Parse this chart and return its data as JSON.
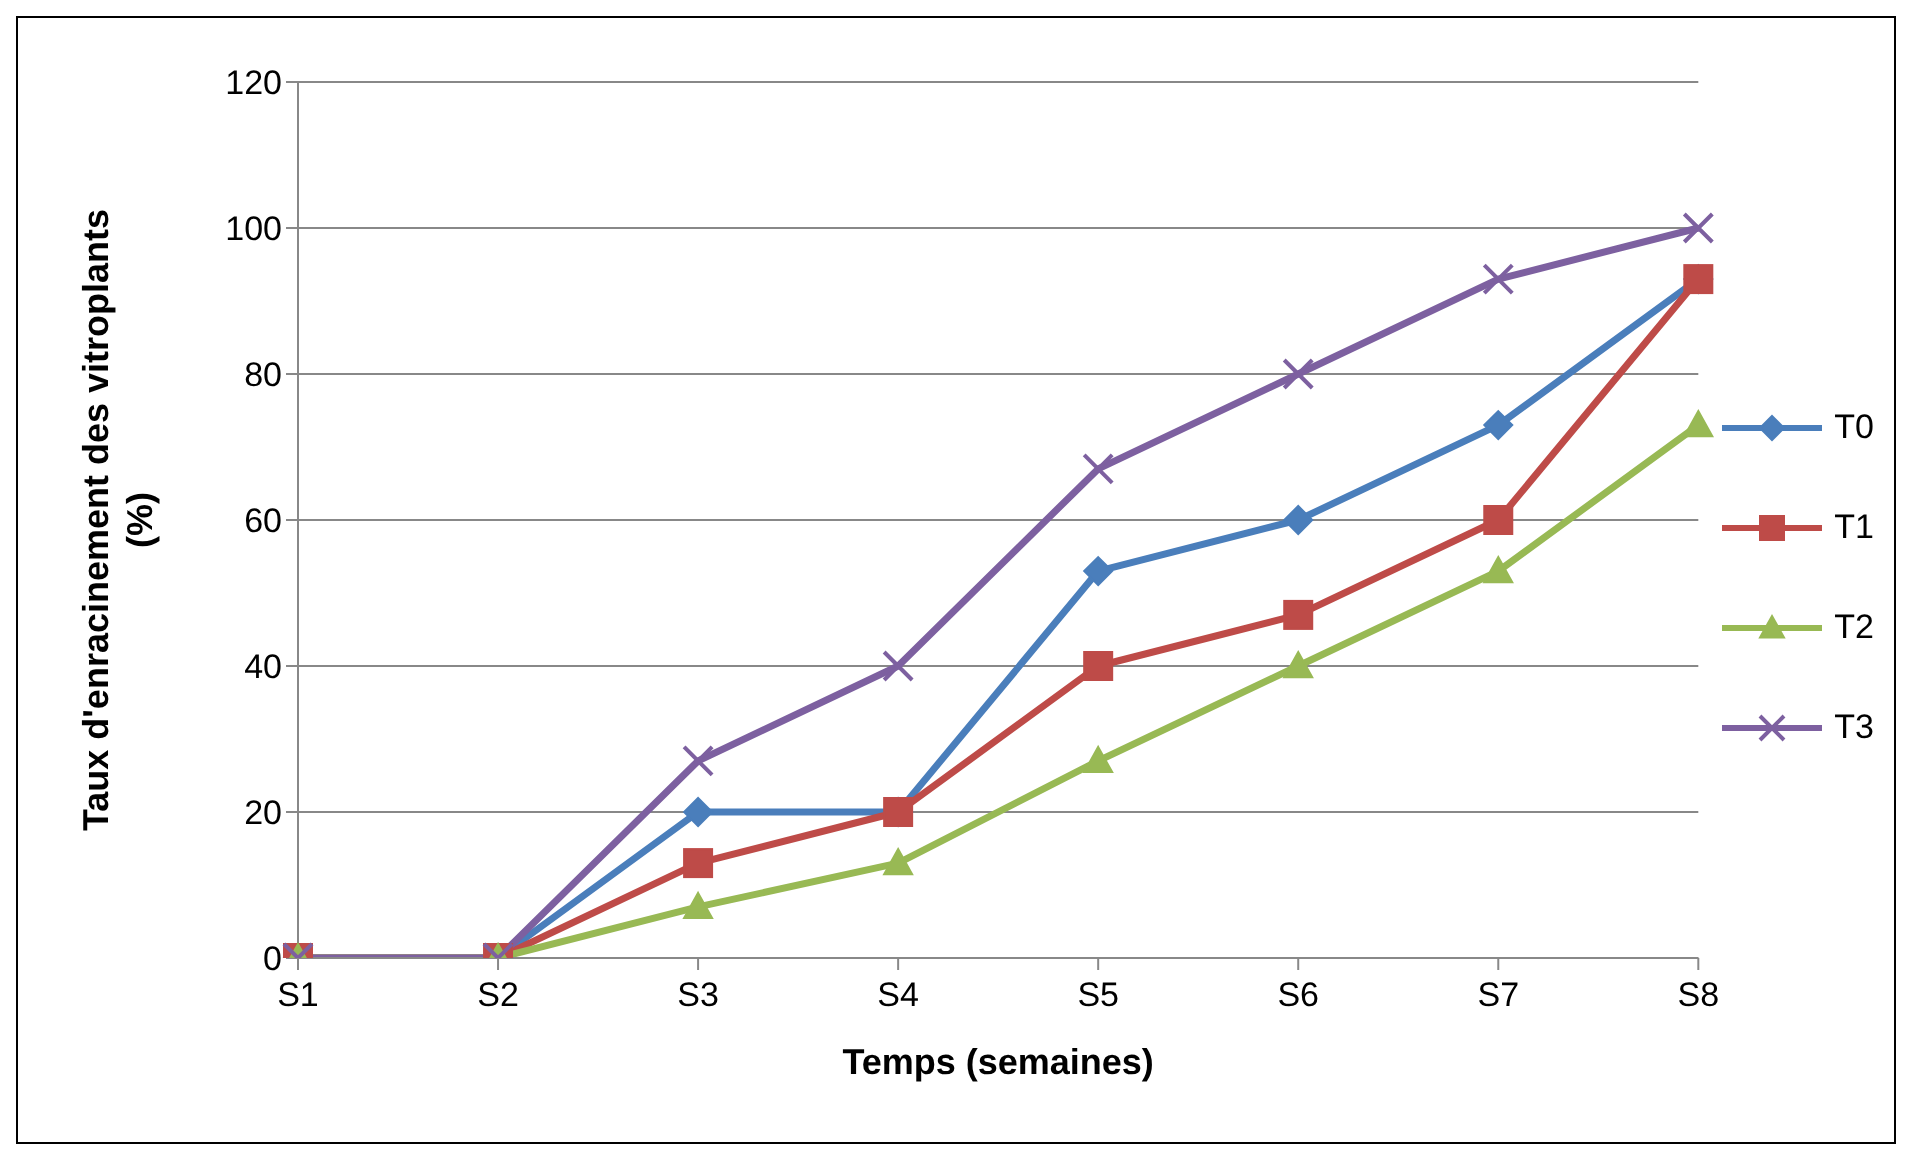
{
  "chart_data": {
    "type": "line",
    "xlabel": "Temps (semaines)",
    "ylabel": "Taux d'enracinement des vitroplants (%)",
    "categories": [
      "S1",
      "S2",
      "S3",
      "S4",
      "S5",
      "S6",
      "S7",
      "S8"
    ],
    "series": [
      {
        "name": "T0",
        "color": "#4a7ebb",
        "marker": "diamond",
        "values": [
          0,
          0,
          20,
          20,
          53,
          60,
          73,
          93
        ]
      },
      {
        "name": "T1",
        "color": "#be4b48",
        "marker": "square",
        "values": [
          0,
          0,
          13,
          20,
          40,
          47,
          60,
          93
        ]
      },
      {
        "name": "T2",
        "color": "#98b954",
        "marker": "triangle",
        "values": [
          0,
          0,
          7,
          13,
          27,
          40,
          53,
          73
        ]
      },
      {
        "name": "T3",
        "color": "#7d60a0",
        "marker": "cross",
        "values": [
          0,
          0,
          27,
          40,
          67,
          80,
          93,
          100
        ]
      }
    ],
    "ylim": [
      0,
      120
    ],
    "yticks": [
      0,
      20,
      40,
      60,
      80,
      100,
      120
    ],
    "grid": "y",
    "legend": "right",
    "line_style": "solid"
  }
}
